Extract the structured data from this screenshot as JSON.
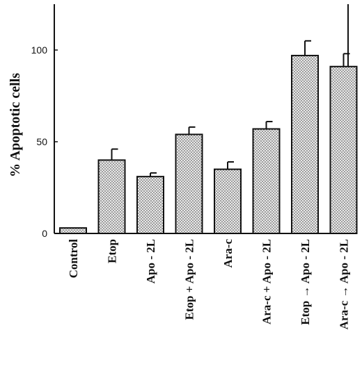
{
  "chart_data": {
    "type": "bar",
    "categories": [
      "Control",
      "Etop",
      "Apo - 2L",
      "Etop + Apo - 2L",
      "Ara-c",
      "Ara-c + Apo - 2L",
      "Etop → Apo - 2L",
      "Ara-c → Apo - 2L"
    ],
    "values": [
      3,
      40,
      31,
      54,
      35,
      57,
      97,
      91
    ],
    "errors": [
      0,
      6,
      2,
      4,
      4,
      4,
      8,
      7
    ],
    "title": "",
    "xlabel": "",
    "ylabel": "% Apoptotic cells",
    "ylim": [
      0,
      125
    ],
    "yticks": [
      0,
      50,
      100
    ],
    "ytick_labels": [
      "0",
      "50",
      "100"
    ],
    "grid": false,
    "bar_fill": "#d9d9d9",
    "bar_edge": "#111111"
  }
}
